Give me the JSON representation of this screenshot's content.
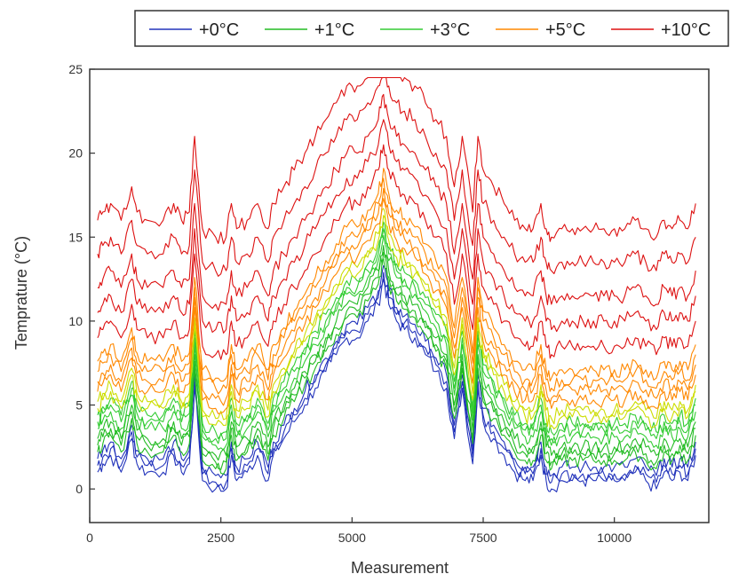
{
  "chart_data": {
    "type": "line",
    "title": "",
    "xlabel": "Measurement",
    "ylabel": "Temprature (°C)",
    "xlim": [
      0,
      11800
    ],
    "ylim": [
      -2,
      25
    ],
    "x_ticks": [
      0,
      2500,
      5000,
      7500,
      10000
    ],
    "x_tick_labels": [
      "0",
      "2500",
      "5000",
      "7500",
      "10000"
    ],
    "y_ticks": [
      0,
      5,
      10,
      15,
      20,
      25
    ],
    "y_tick_labels": [
      "0",
      "5",
      "10",
      "15",
      "20",
      "25"
    ],
    "legend_position": "top",
    "legend": [
      {
        "label": "+0°C",
        "color": "#2233bb"
      },
      {
        "label": "+1°C",
        "color": "#22bb22"
      },
      {
        "label": "+3°C",
        "color": "#33cc33"
      },
      {
        "label": "+5°C",
        "color": "#ff8800"
      },
      {
        "label": "+10°C",
        "color": "#dd1111"
      }
    ],
    "x": [
      150,
      250,
      400,
      600,
      800,
      900,
      1100,
      1400,
      1600,
      1750,
      1900,
      2000,
      2150,
      2400,
      2600,
      2700,
      2800,
      3000,
      3200,
      3400,
      3500,
      3700,
      3900,
      4100,
      4300,
      4500,
      4700,
      4900,
      5100,
      5300,
      5500,
      5600,
      5700,
      5850,
      6000,
      6200,
      6400,
      6600,
      6800,
      6950,
      7100,
      7300,
      7400,
      7500,
      7700,
      7900,
      8100,
      8300,
      8450,
      8600,
      8700,
      8800,
      9000,
      9200,
      9400,
      9600,
      9800,
      10000,
      10200,
      10400,
      10600,
      10800,
      10950,
      11100,
      11250,
      11400,
      11550
    ],
    "base": [
      1,
      1.5,
      2,
      1,
      3,
      1.5,
      1,
      1,
      2,
      1,
      1.5,
      6,
      0.5,
      0,
      0,
      2,
      0.5,
      1,
      2,
      0.5,
      2,
      3,
      4,
      5,
      6,
      7,
      8,
      9,
      9,
      10,
      11,
      12.5,
      11,
      10,
      9.5,
      9,
      8,
      7,
      6,
      3,
      6,
      1.5,
      6,
      4,
      3,
      2,
      1,
      0.5,
      0.5,
      2,
      0.5,
      0,
      0.5,
      0.5,
      0.5,
      0.5,
      0.5,
      0.5,
      0.5,
      1,
      0.5,
      0,
      1,
      0.5,
      1,
      0.5,
      2
    ],
    "series": [
      {
        "group": "+0°C",
        "color": "#2233bb",
        "offsets": [
          0,
          0.4,
          0.8
        ]
      },
      {
        "group": "+1°C",
        "color": "#22bb22",
        "offsets": [
          1.2,
          1.6,
          2.0
        ]
      },
      {
        "group": "+3°C",
        "color": "#33cc33",
        "offsets": [
          2.6,
          3.0,
          3.4
        ]
      },
      {
        "group": "+3°C",
        "color": "#ccdd00",
        "offsets": [
          3.8,
          4.2
        ]
      },
      {
        "group": "+5°C",
        "color": "#ff8800",
        "offsets": [
          4.8,
          5.4,
          6.0,
          6.6
        ]
      },
      {
        "group": "+10°C",
        "color": "#dd1111",
        "offsets": [
          8.0,
          9.5,
          11.0,
          13.0,
          15.0
        ]
      }
    ],
    "grid": false
  }
}
